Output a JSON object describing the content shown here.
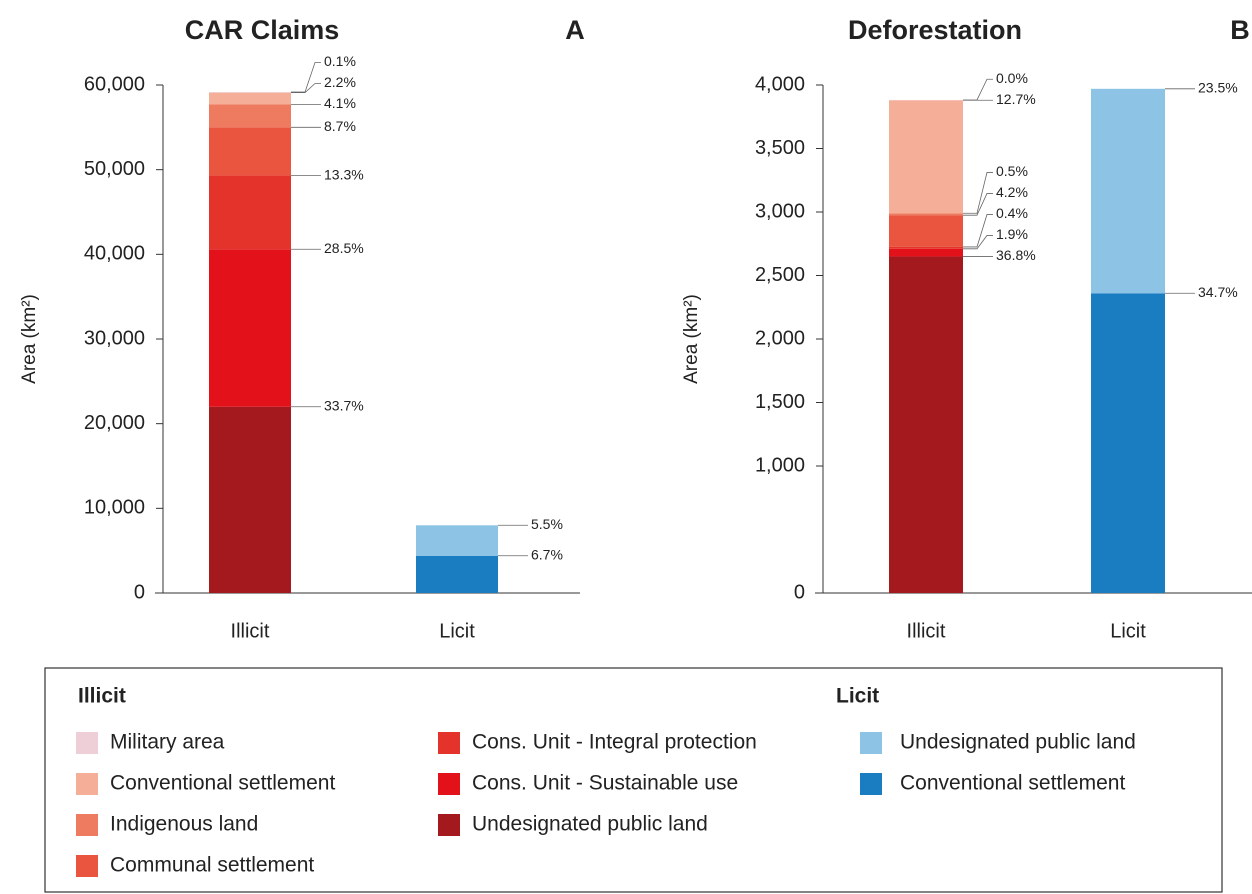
{
  "chart_data": [
    {
      "type": "stacked-bar",
      "title": "CAR Claims",
      "panel": "A",
      "ylabel": "Area (km²)",
      "categories": [
        "Illicit",
        "Licit"
      ],
      "ylim": [
        0,
        60000
      ],
      "yticks": [
        0,
        {
          "value": 10000,
          "label": "10,000"
        },
        {
          "value": 20000,
          "label": "20,000"
        },
        {
          "value": 30000,
          "label": "30,000"
        },
        {
          "value": 40000,
          "label": "40,000"
        },
        {
          "value": 50000,
          "label": "50,000"
        },
        {
          "value": 60000,
          "label": "60,000"
        }
      ],
      "series": [
        {
          "color": "#a3191d",
          "values": [
            22000,
            null
          ],
          "labels": [
            "33.7%",
            null
          ]
        },
        {
          "color": "#e3121a",
          "values": [
            18600,
            null
          ],
          "labels": [
            "28.5%",
            null
          ]
        },
        {
          "color": "#e4332b",
          "values": [
            8700,
            null
          ],
          "labels": [
            "13.3%",
            null
          ]
        },
        {
          "color": "#e9553f",
          "values": [
            5700,
            null
          ],
          "labels": [
            "8.7%",
            null
          ]
        },
        {
          "color": "#ee7b60",
          "values": [
            2700,
            null
          ],
          "labels": [
            "4.1%",
            null
          ]
        },
        {
          "color": "#f5ae98",
          "values": [
            1400,
            null
          ],
          "labels": [
            "2.2%",
            null
          ]
        },
        {
          "color": "#efcfd7",
          "values": [
            65,
            null
          ],
          "labels": [
            "0.1%",
            null
          ]
        },
        {
          "color": "#1a7dc2",
          "values": [
            null,
            4400
          ],
          "labels": [
            null,
            "6.7%"
          ]
        },
        {
          "color": "#8dc4e6",
          "values": [
            null,
            3600
          ],
          "labels": [
            null,
            "5.5%"
          ]
        }
      ]
    },
    {
      "type": "stacked-bar",
      "title": "Deforestation",
      "panel": "B",
      "ylabel": "Area (km²)",
      "categories": [
        "Illicit",
        "Licit"
      ],
      "ylim": [
        0,
        4000
      ],
      "yticks": [
        0,
        {
          "value": 1000,
          "label": "1,000"
        },
        {
          "value": 1500,
          "label": "1,500"
        },
        {
          "value": 2000,
          "label": "2,000"
        },
        {
          "value": 2500,
          "label": "2,500"
        },
        {
          "value": 3000,
          "label": "3,000"
        },
        {
          "value": 3500,
          "label": "3,500"
        },
        {
          "value": 4000,
          "label": "4,000"
        }
      ],
      "series": [
        {
          "color": "#a3191d",
          "values": [
            2650,
            null
          ],
          "labels": [
            "36.8%",
            null
          ]
        },
        {
          "color": "#e3121a",
          "values": [
            60,
            null
          ],
          "labels": [
            "1.9%",
            null
          ]
        },
        {
          "color": "#e4332b",
          "values": [
            15,
            null
          ],
          "labels": [
            "0.4%",
            null
          ]
        },
        {
          "color": "#e9553f",
          "values": [
            250,
            null
          ],
          "labels": [
            "4.2%",
            null
          ]
        },
        {
          "color": "#ee7b60",
          "values": [
            15,
            null
          ],
          "labels": [
            "0.5%",
            null
          ]
        },
        {
          "color": "#f5ae98",
          "values": [
            890,
            null
          ],
          "labels": [
            "12.7%",
            null
          ]
        },
        {
          "color": "#efcfd7",
          "values": [
            2,
            null
          ],
          "labels": [
            "0.0%",
            null
          ]
        },
        {
          "color": "#1a7dc2",
          "values": [
            null,
            2360
          ],
          "labels": [
            null,
            "34.7%"
          ]
        },
        {
          "color": "#8dc4e6",
          "values": [
            null,
            1610
          ],
          "labels": [
            null,
            "23.5%"
          ]
        }
      ]
    }
  ],
  "legend": {
    "groups": [
      {
        "title": "Illicit",
        "items": [
          {
            "name": "Military area",
            "color": "#efcfd7"
          },
          {
            "name": "Conventional settlement",
            "color": "#f5ae98"
          },
          {
            "name": "Indigenous land",
            "color": "#ee7b60"
          },
          {
            "name": "Communal settlement",
            "color": "#e9553f"
          },
          {
            "name": "Cons. Unit - Integral protection",
            "color": "#e4332b"
          },
          {
            "name": "Cons. Unit - Sustainable use",
            "color": "#e3121a"
          },
          {
            "name": "Undesignated public land",
            "color": "#a3191d"
          }
        ]
      },
      {
        "title": "Licit",
        "items": [
          {
            "name": "Undesignated public land",
            "color": "#8dc4e6"
          },
          {
            "name": "Conventional settlement",
            "color": "#1a7dc2"
          }
        ]
      }
    ]
  }
}
